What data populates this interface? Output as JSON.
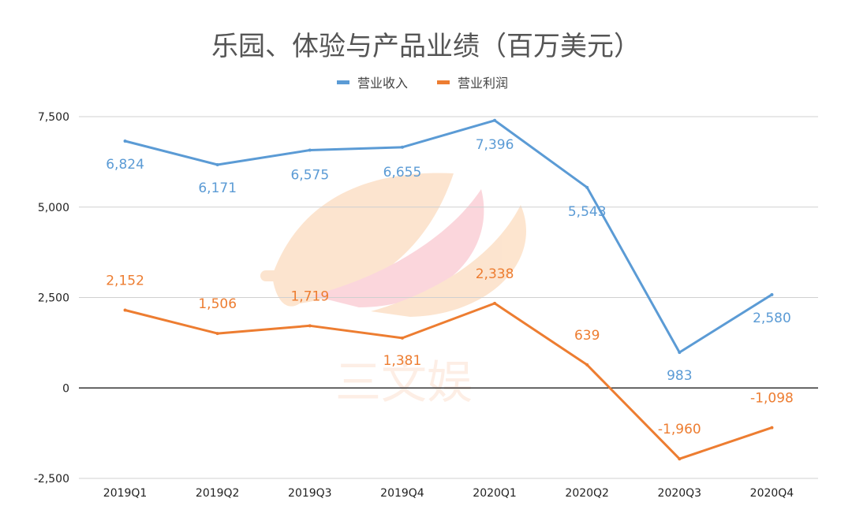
{
  "chart_data": {
    "type": "line",
    "title": "乐园、体验与产品业绩（百万美元）",
    "categories": [
      "2019Q1",
      "2019Q2",
      "2019Q3",
      "2019Q4",
      "2020Q1",
      "2020Q2",
      "2020Q3",
      "2020Q4"
    ],
    "series": [
      {
        "name": "营业收入",
        "color": "#5b9bd5",
        "values": [
          6824,
          6171,
          6575,
          6655,
          7396,
          5543,
          983,
          2580
        ],
        "labels": [
          "6,824",
          "6,171",
          "6,575",
          "6,655",
          "7,396",
          "5,543",
          "983",
          "2,580"
        ]
      },
      {
        "name": "营业利润",
        "color": "#ed7d31",
        "values": [
          2152,
          1506,
          1719,
          1381,
          2338,
          639,
          -1960,
          -1098
        ],
        "labels": [
          "2,152",
          "1,506",
          "1,719",
          "1,381",
          "2,338",
          "639",
          "-1,960",
          "-1,098"
        ]
      }
    ],
    "yticks": [
      7500,
      5000,
      2500,
      0,
      -2500
    ],
    "ytick_labels": [
      "7,500",
      "5,000",
      "2,500",
      "0",
      "-2,500"
    ],
    "ylim": [
      -2500,
      7500
    ],
    "grid": true,
    "legend": "top-center",
    "xlabel": "",
    "ylabel": ""
  },
  "watermark": "三文娱"
}
